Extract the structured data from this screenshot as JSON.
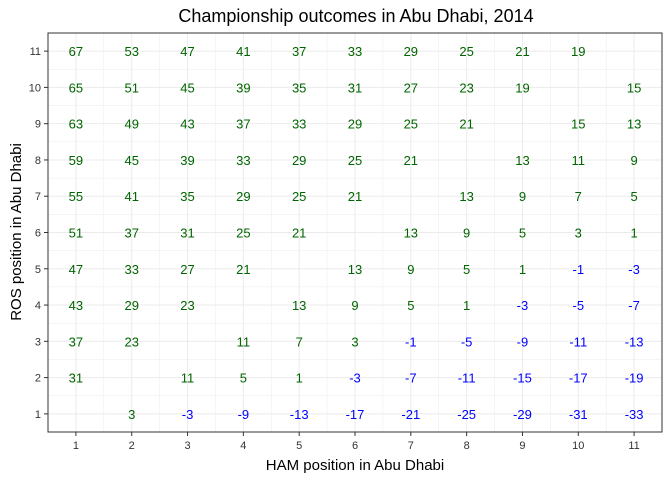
{
  "chart_data": {
    "type": "table",
    "title": "Championship outcomes in Abu Dhabi, 2014",
    "xlabel": "HAM position in Abu Dhabi",
    "ylabel": "ROS position in Abu Dhabi",
    "x_ticks": [
      "1",
      "2",
      "3",
      "4",
      "5",
      "6",
      "7",
      "8",
      "9",
      "10",
      "11"
    ],
    "y_ticks": [
      "1",
      "2",
      "3",
      "4",
      "5",
      "6",
      "7",
      "8",
      "9",
      "10",
      "11"
    ],
    "xlim": [
      0.5,
      11.5
    ],
    "ylim": [
      0.5,
      11.5
    ],
    "grid": true,
    "colors": {
      "positive": "#006400",
      "negative": "#0000ff",
      "grid": "#ebebeb",
      "panel_border": "#333333"
    },
    "rows": [
      {
        "ros": 11,
        "values": [
          67,
          53,
          47,
          41,
          37,
          33,
          29,
          25,
          21,
          19,
          null
        ]
      },
      {
        "ros": 10,
        "values": [
          65,
          51,
          45,
          39,
          35,
          31,
          27,
          23,
          19,
          null,
          15
        ]
      },
      {
        "ros": 9,
        "values": [
          63,
          49,
          43,
          37,
          33,
          29,
          25,
          21,
          null,
          15,
          13
        ]
      },
      {
        "ros": 8,
        "values": [
          59,
          45,
          39,
          33,
          29,
          25,
          21,
          null,
          13,
          11,
          9
        ]
      },
      {
        "ros": 7,
        "values": [
          55,
          41,
          35,
          29,
          25,
          21,
          null,
          13,
          9,
          7,
          5
        ]
      },
      {
        "ros": 6,
        "values": [
          51,
          37,
          31,
          25,
          21,
          null,
          13,
          9,
          5,
          3,
          1
        ]
      },
      {
        "ros": 5,
        "values": [
          47,
          33,
          27,
          21,
          null,
          13,
          9,
          5,
          1,
          -1,
          -3
        ]
      },
      {
        "ros": 4,
        "values": [
          43,
          29,
          23,
          null,
          13,
          9,
          5,
          1,
          -3,
          -5,
          -7
        ]
      },
      {
        "ros": 3,
        "values": [
          37,
          23,
          null,
          11,
          7,
          3,
          -1,
          -5,
          -9,
          -11,
          -13
        ]
      },
      {
        "ros": 2,
        "values": [
          31,
          null,
          11,
          5,
          1,
          -3,
          -7,
          -11,
          -15,
          -17,
          -19
        ]
      },
      {
        "ros": 1,
        "values": [
          null,
          3,
          -3,
          -9,
          -13,
          -17,
          -21,
          -25,
          -29,
          -31,
          -33
        ]
      }
    ]
  }
}
